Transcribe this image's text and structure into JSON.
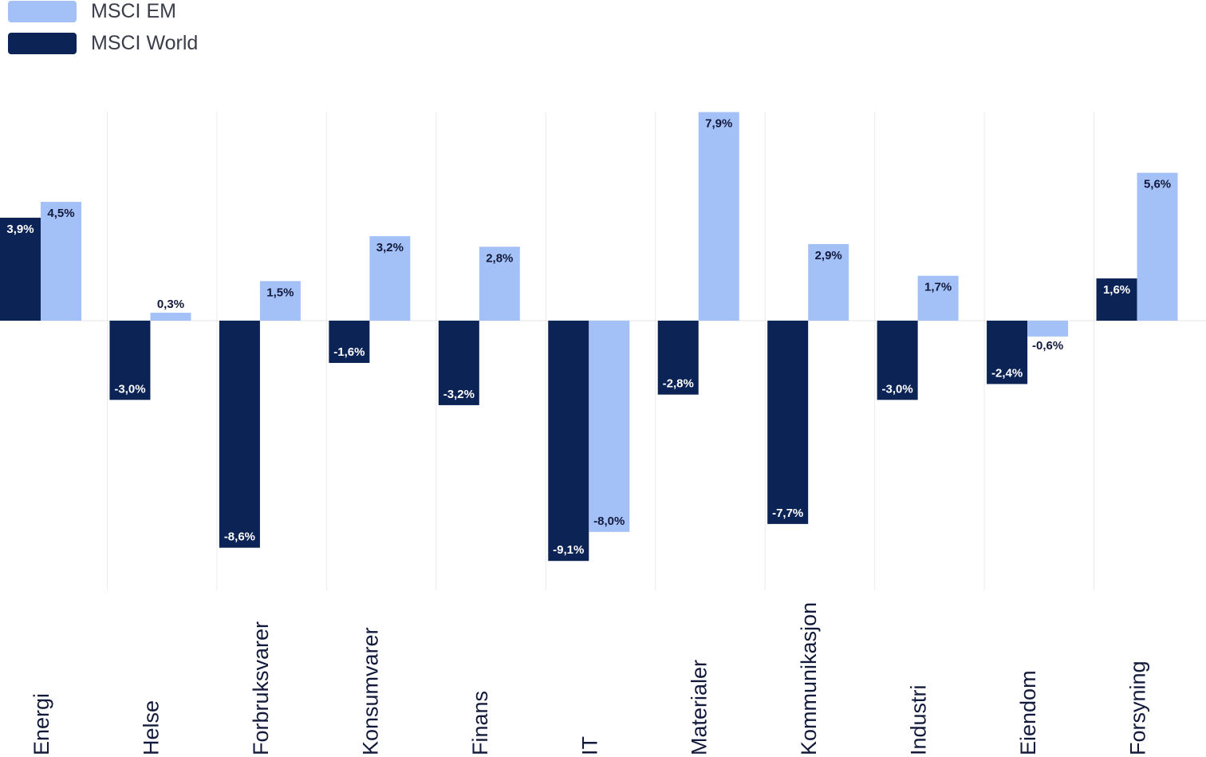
{
  "chart_data": {
    "type": "bar",
    "categories": [
      "Energi",
      "Helse",
      "Forbruksvarer",
      "Konsumvarer",
      "Finans",
      "IT",
      "Materialer",
      "Kommunikasjon",
      "Industri",
      "Eiendom",
      "Forsyning"
    ],
    "series": [
      {
        "name": "MSCI World",
        "color": "#0b2355",
        "values": [
          3.9,
          -3.0,
          -8.6,
          -1.6,
          -3.2,
          -9.1,
          -2.8,
          -7.7,
          -3.0,
          -2.4,
          1.6
        ],
        "labels": [
          "3,9%",
          "-3,0%",
          "-8,6%",
          "-1,6%",
          "-3,2%",
          "-9,1%",
          "-2,8%",
          "-7,7%",
          "-3,0%",
          "-2,4%",
          "1,6%"
        ]
      },
      {
        "name": "MSCI EM",
        "color": "#a4c1f7",
        "values": [
          4.5,
          0.3,
          1.5,
          3.2,
          2.8,
          -8.0,
          7.9,
          2.9,
          1.7,
          -0.6,
          5.6
        ],
        "labels": [
          "4,5%",
          "0,3%",
          "1,5%",
          "3,2%",
          "2,8%",
          "-8,0%",
          "7,9%",
          "2,9%",
          "1,7%",
          "-0,6%",
          "5,6%"
        ]
      }
    ],
    "legend_order": [
      "MSCI EM",
      "MSCI World"
    ],
    "ylim": [
      -10.2,
      7.9
    ],
    "grid": "vertical separators",
    "legend_position": "top-left"
  }
}
